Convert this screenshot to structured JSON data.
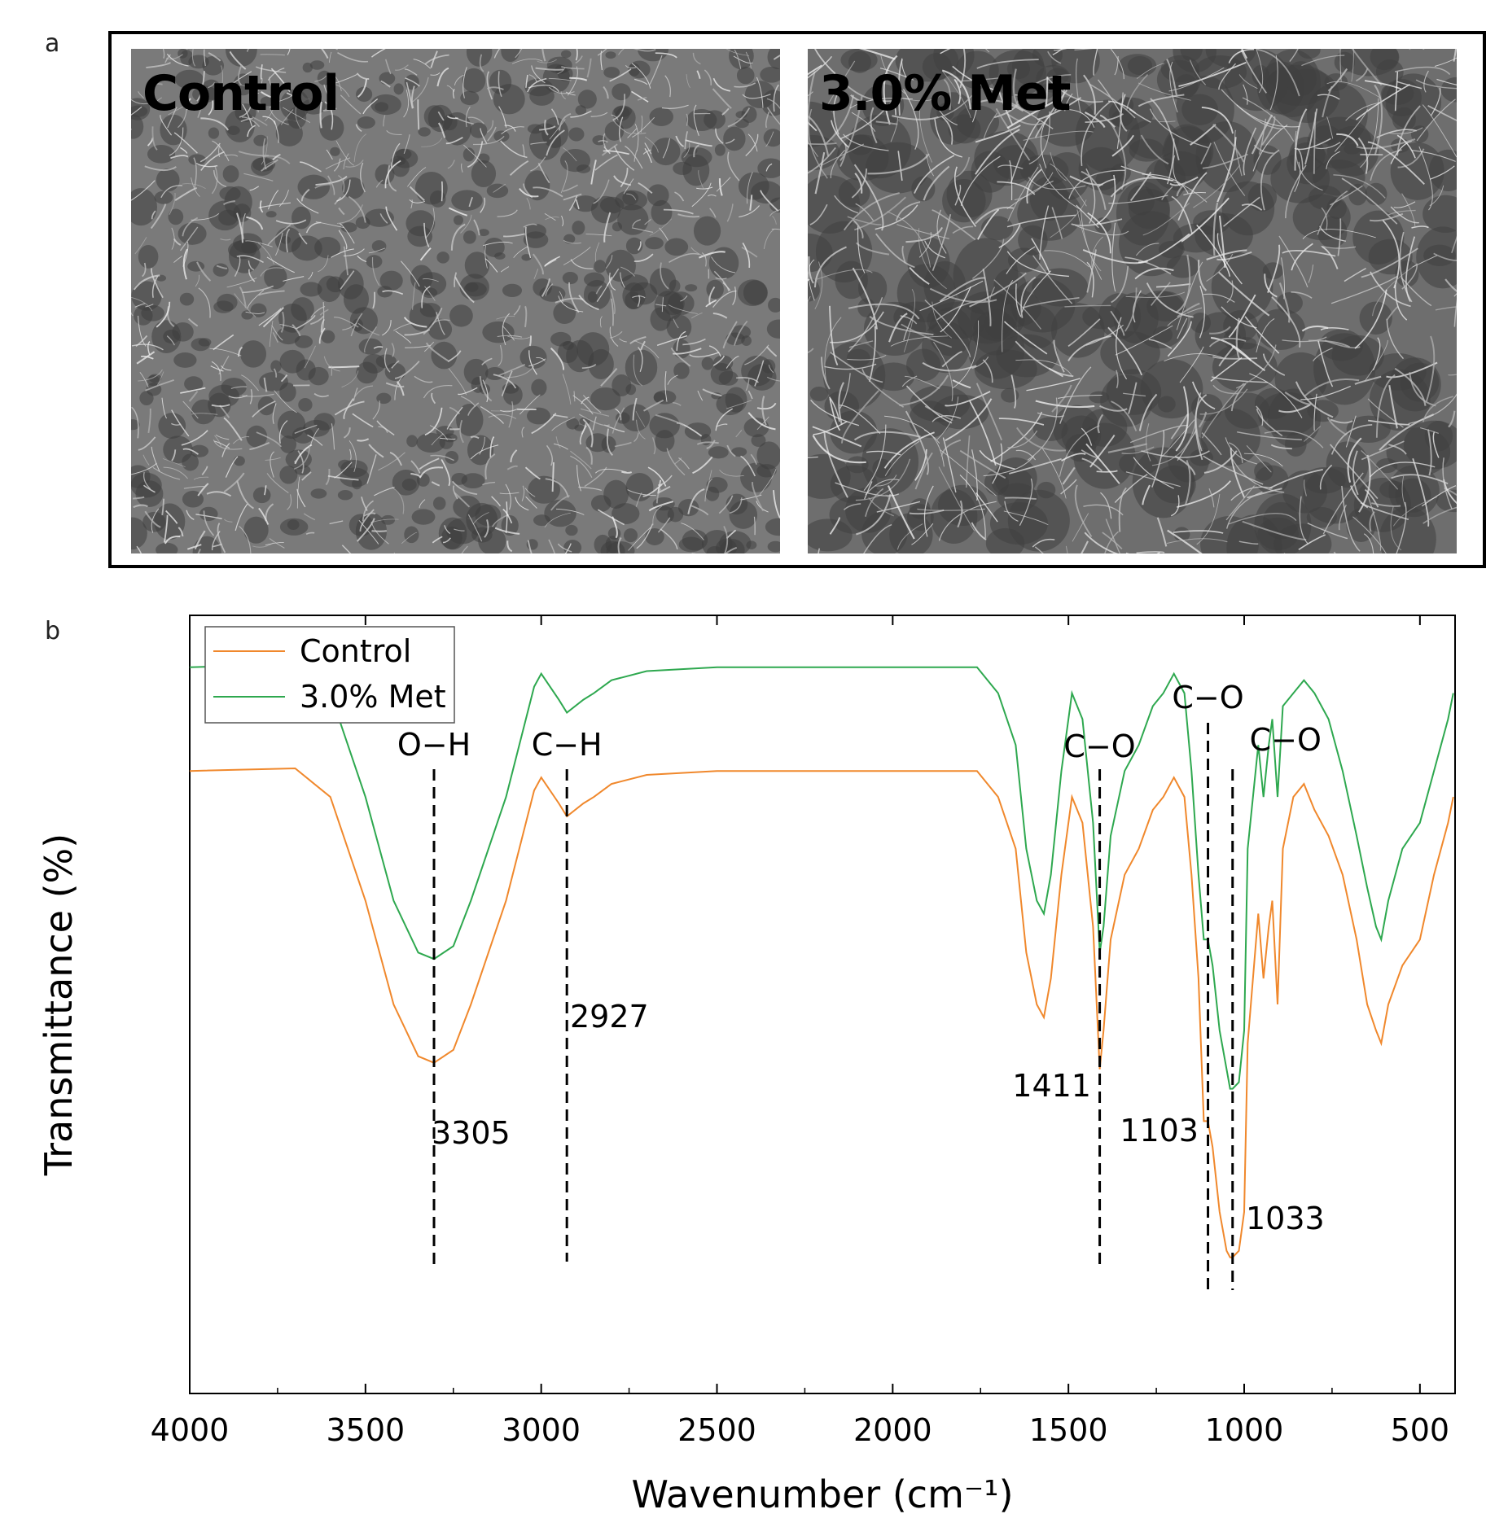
{
  "panel_a": {
    "letter": "a",
    "images": [
      {
        "label": "Control"
      },
      {
        "label": "3.0% Met"
      }
    ]
  },
  "panel_b": {
    "letter": "b"
  },
  "chart_data": {
    "type": "line",
    "xlabel": "Wavenumber (cm⁻¹)",
    "ylabel": "Transmittance (%)",
    "xlim": [
      4000,
      400
    ],
    "x_ticks": [
      4000,
      3500,
      3000,
      2500,
      2000,
      1500,
      1000,
      500
    ],
    "x_tick_labels": [
      "4000",
      "3500",
      "3000",
      "2500",
      "2000",
      "1500",
      "1000",
      "500"
    ],
    "y_ticks": false,
    "legend": {
      "position": "top-left",
      "entries": [
        "Control",
        "3.0% Met"
      ]
    },
    "colors": {
      "Control": "#f0882c",
      "3.0% Met": "#2ea84f"
    },
    "series": [
      {
        "name": "Control",
        "color": "#f0882c",
        "x": [
          4000,
          3700,
          3600,
          3500,
          3420,
          3350,
          3305,
          3250,
          3200,
          3100,
          3020,
          3000,
          2950,
          2927,
          2880,
          2850,
          2800,
          2700,
          2500,
          2200,
          1900,
          1760,
          1700,
          1650,
          1620,
          1590,
          1570,
          1550,
          1520,
          1490,
          1460,
          1430,
          1411,
          1400,
          1380,
          1340,
          1300,
          1260,
          1230,
          1200,
          1170,
          1150,
          1130,
          1115,
          1103,
          1090,
          1070,
          1050,
          1040,
          1033,
          1015,
          1000,
          990,
          975,
          960,
          945,
          930,
          920,
          905,
          890,
          860,
          830,
          800,
          760,
          720,
          680,
          650,
          625,
          610,
          590,
          550,
          500,
          460,
          420,
          405
        ],
        "y": [
          88,
          88.2,
          86,
          78,
          70,
          66,
          65.5,
          66.5,
          70,
          78,
          86.5,
          87.5,
          85.5,
          84.5,
          85.5,
          86,
          87,
          87.7,
          88,
          88,
          88,
          88,
          86,
          82,
          74,
          70,
          69,
          72,
          80,
          86,
          84,
          76,
          65,
          68,
          75,
          80,
          82,
          85,
          86,
          87.5,
          86,
          80,
          72,
          61,
          61,
          59,
          54,
          51,
          50.5,
          50.5,
          51,
          54,
          67,
          72,
          77,
          72,
          76,
          78,
          70,
          82,
          86,
          87,
          85,
          83,
          80,
          75,
          70,
          68,
          67,
          70,
          73,
          75,
          80,
          84,
          86
        ]
      },
      {
        "name": "3.0% Met",
        "color": "#2ea84f",
        "x": [
          4000,
          3700,
          3600,
          3500,
          3420,
          3350,
          3305,
          3250,
          3200,
          3100,
          3020,
          3000,
          2950,
          2927,
          2880,
          2850,
          2800,
          2700,
          2500,
          2200,
          1900,
          1760,
          1700,
          1650,
          1620,
          1590,
          1570,
          1550,
          1520,
          1490,
          1460,
          1430,
          1411,
          1400,
          1380,
          1340,
          1300,
          1260,
          1230,
          1200,
          1170,
          1150,
          1130,
          1115,
          1103,
          1090,
          1070,
          1050,
          1040,
          1033,
          1015,
          1000,
          990,
          975,
          960,
          945,
          930,
          920,
          905,
          890,
          860,
          830,
          800,
          760,
          720,
          680,
          650,
          625,
          610,
          590,
          550,
          500,
          460,
          420,
          405
        ],
        "y": [
          96,
          96.2,
          94,
          86,
          78,
          74,
          73.5,
          74.5,
          78,
          86,
          94.5,
          95.5,
          93.5,
          92.5,
          93.5,
          94,
          95,
          95.7,
          96,
          96,
          96,
          96,
          94,
          90,
          82,
          78,
          77,
          80,
          88,
          94,
          92,
          84,
          74,
          76,
          83,
          88,
          90,
          93,
          94,
          95.5,
          94,
          88,
          80,
          75,
          75,
          73,
          68,
          65,
          63.5,
          63.5,
          64,
          68,
          82,
          86,
          90,
          86,
          90,
          92,
          86,
          93,
          94,
          95,
          94,
          92,
          88,
          83,
          79,
          76,
          75,
          78,
          82,
          84,
          88,
          92,
          94
        ]
      }
    ],
    "annotations": [
      {
        "wavenumber": 3305,
        "bond": "O−H",
        "value_label": "3305"
      },
      {
        "wavenumber": 2927,
        "bond": "C−H",
        "value_label": "2927"
      },
      {
        "wavenumber": 1411,
        "bond": "C−O",
        "value_label": "1411"
      },
      {
        "wavenumber": 1103,
        "bond": "C−O",
        "value_label": "1103"
      },
      {
        "wavenumber": 1033,
        "bond": "C−O",
        "value_label": "1033"
      }
    ]
  }
}
